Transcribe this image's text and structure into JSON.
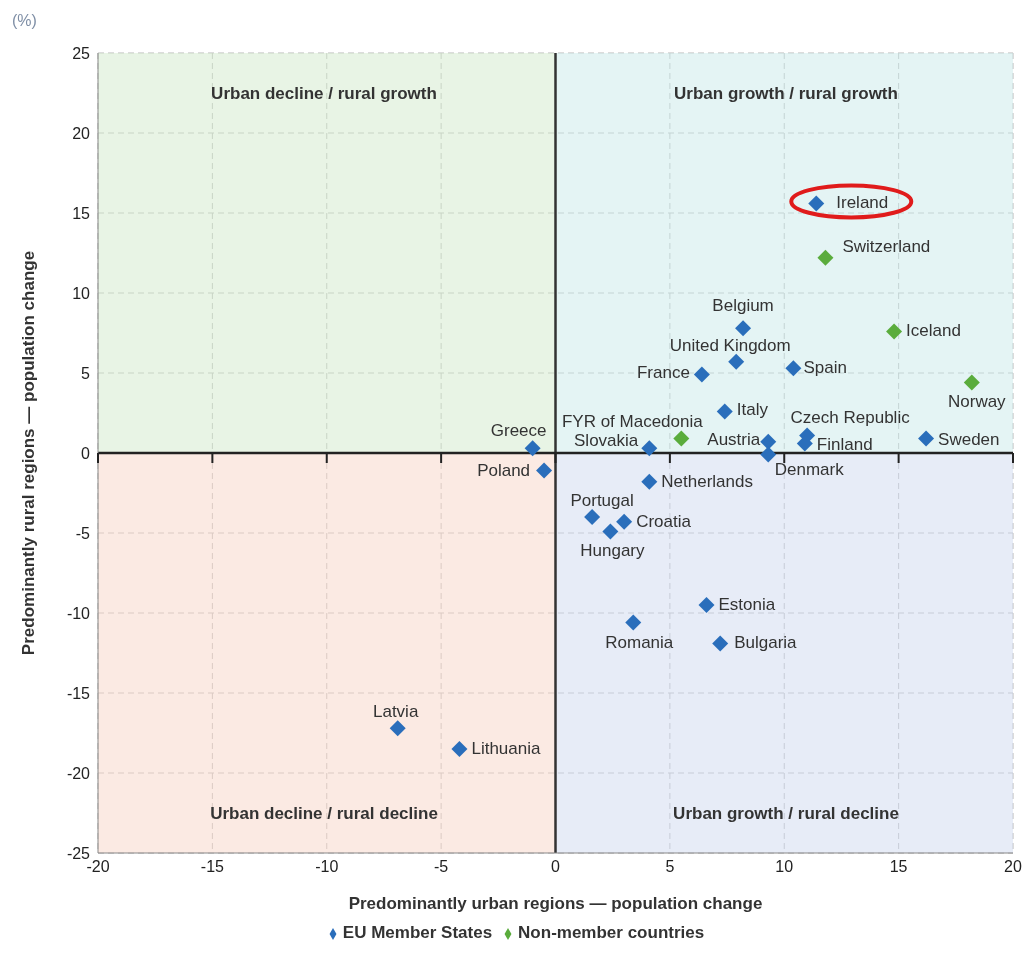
{
  "chart_data": {
    "type": "scatter",
    "xlabel": "Predominantly urban regions — population change",
    "ylabel": "Predominantly rural regions — population change",
    "xlim": [
      -20,
      20
    ],
    "xticks": [
      -20,
      -15,
      -10,
      -5,
      0,
      5,
      10,
      15,
      20
    ],
    "ylim": [
      -25,
      25
    ],
    "yticks": [
      -25,
      -20,
      -15,
      -10,
      -5,
      0,
      5,
      10,
      15,
      20,
      25
    ],
    "grid": true,
    "legend": "bottom",
    "marker": "diamond",
    "ref_lines": [
      {
        "axis": "x",
        "value": 0,
        "color": "#333333"
      },
      {
        "axis": "y",
        "value": 0,
        "color": "#222222"
      }
    ],
    "series": [
      {
        "name": "EU Member States",
        "color": "#2a6ebb",
        "x": [
          11.4,
          8.2,
          7.9,
          6.4,
          10.4,
          7.4,
          11.0,
          10.9,
          16.2,
          9.3,
          9.3,
          4.1,
          -1.0,
          -0.5,
          4.1,
          1.6,
          3.0,
          2.4,
          6.6,
          3.4,
          7.2,
          -6.9,
          -4.2
        ],
        "values": [
          15.6,
          7.8,
          5.7,
          4.9,
          5.3,
          2.6,
          1.1,
          0.6,
          0.9,
          0.7,
          -0.1,
          0.3,
          0.3,
          -1.1,
          -1.8,
          -4.0,
          -4.3,
          -4.9,
          -9.5,
          -10.6,
          -11.9,
          -17.2,
          -18.5
        ]
      },
      {
        "name": "Non-member countries",
        "color": "#5aac3c",
        "x": [
          11.8,
          14.8,
          18.2,
          5.5
        ],
        "values": [
          12.2,
          7.6,
          4.4,
          0.9
        ]
      }
    ],
    "annotations": [
      "(%)",
      "Urban decline / rural growth",
      "Urban growth / rural growth",
      "Urban decline / rural decline",
      "Urban growth / rural decline",
      {
        "text": "Ireland",
        "x": 11.4,
        "y": 15.6
      },
      {
        "text": "Switzerland",
        "x": 11.8,
        "y": 12.2
      },
      {
        "text": "Belgium",
        "x": 8.2,
        "y": 7.8
      },
      {
        "text": "United Kingdom",
        "x": 7.9,
        "y": 5.7
      },
      {
        "text": "France",
        "x": 6.4,
        "y": 4.9
      },
      {
        "text": "Spain",
        "x": 10.4,
        "y": 5.3
      },
      {
        "text": "Iceland",
        "x": 14.8,
        "y": 7.6
      },
      {
        "text": "Norway",
        "x": 18.2,
        "y": 4.4
      },
      {
        "text": "Italy",
        "x": 7.4,
        "y": 2.6
      },
      {
        "text": "Czech Republic",
        "x": 11.0,
        "y": 1.1
      },
      {
        "text": "Finland",
        "x": 10.9,
        "y": 0.6
      },
      {
        "text": "Sweden",
        "x": 16.2,
        "y": 0.9
      },
      {
        "text": "Austria",
        "x": 9.3,
        "y": 0.7
      },
      {
        "text": "Denmark",
        "x": 9.3,
        "y": -0.1
      },
      {
        "text": "FYR of Macedonia",
        "x": 5.5,
        "y": 0.9
      },
      {
        "text": "Slovakia",
        "x": 4.1,
        "y": 0.3
      },
      {
        "text": "Greece",
        "x": -1.0,
        "y": 0.3
      },
      {
        "text": "Poland",
        "x": -0.5,
        "y": -1.1
      },
      {
        "text": "Netherlands",
        "x": 4.1,
        "y": -1.8
      },
      {
        "text": "Portugal",
        "x": 1.6,
        "y": -4.0
      },
      {
        "text": "Croatia",
        "x": 3.0,
        "y": -4.3
      },
      {
        "text": "Hungary",
        "x": 2.4,
        "y": -4.9
      },
      {
        "text": "Estonia",
        "x": 6.6,
        "y": -9.5
      },
      {
        "text": "Romania",
        "x": 3.4,
        "y": -10.6
      },
      {
        "text": "Bulgaria",
        "x": 7.2,
        "y": -11.9
      },
      {
        "text": "Latvia",
        "x": -6.9,
        "y": -17.2
      },
      {
        "text": "Lithuania",
        "x": -4.2,
        "y": -18.5
      }
    ]
  }
}
